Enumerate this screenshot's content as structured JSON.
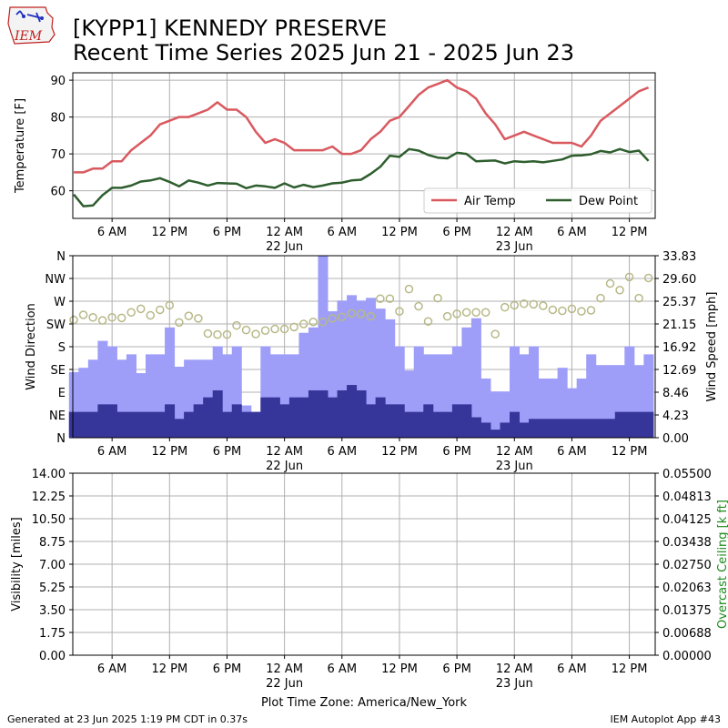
{
  "header": {
    "title_line1": "[KYPP1] KENNEDY PRESERVE",
    "title_line2": "Recent Time Series 2025 Jun 21 - 2025 Jun 23",
    "logo_text": "IEM"
  },
  "footer": {
    "generated": "Generated at 23 Jun 2025 1:19 PM CDT in 0.37s",
    "app": "IEM Autoplot App #43",
    "timezone_label": "Plot Time Zone: America/New_York"
  },
  "colors": {
    "air_temp": "#d9595f",
    "dew_point": "#2e5e2e",
    "gust_bar": "#9e9ef9",
    "sknt_bar": "#36369a",
    "wind_dir_marker": "#b8b888",
    "ceiling_axis": "#1a8a1a",
    "grid": "#b0b0b0"
  },
  "chart_data": [
    {
      "type": "line",
      "name": "temperature",
      "ylabel": "Temperature [F]",
      "ylim": [
        52.5,
        92
      ],
      "yticks": [
        60,
        70,
        80,
        90
      ],
      "x_unit": "hours since 2025-06-21 00:00 America/New_York",
      "xlim": [
        1.9,
        62.7
      ],
      "xticks": [
        6,
        12,
        18,
        24,
        30,
        36,
        42,
        48,
        54,
        60
      ],
      "xticklabels": [
        "6 AM",
        "12 PM",
        "6 PM",
        "12 AM",
        "6 AM",
        "12 PM",
        "6 PM",
        "12 AM",
        "6 AM",
        "12 PM"
      ],
      "date_labels": [
        {
          "x": 24,
          "label": "22 Jun"
        },
        {
          "x": 48,
          "label": "23 Jun"
        }
      ],
      "grid": true,
      "legend": "lower-right",
      "series": [
        {
          "name": "Air Temp",
          "x": [
            2,
            3,
            4,
            5,
            6,
            7,
            8,
            9,
            10,
            11,
            12,
            13,
            14,
            15,
            16,
            17,
            18,
            19,
            20,
            21,
            22,
            23,
            24,
            25,
            26,
            27,
            28,
            29,
            30,
            31,
            32,
            33,
            34,
            35,
            36,
            37,
            38,
            39,
            40,
            41,
            42,
            43,
            44,
            45,
            46,
            47,
            48,
            49,
            50,
            51,
            52,
            53,
            54,
            55,
            56,
            57,
            58,
            59,
            60,
            61,
            62
          ],
          "values": [
            65,
            65,
            66,
            66,
            68,
            68,
            71,
            73,
            75,
            78,
            79,
            80,
            80,
            81,
            82,
            84,
            82,
            82,
            80,
            76,
            73,
            74,
            73,
            71,
            71,
            71,
            71,
            72,
            70,
            70,
            71,
            74,
            76,
            79,
            80,
            83,
            86,
            88,
            89,
            90,
            88,
            87,
            85,
            81,
            78,
            74,
            75,
            76,
            75,
            74,
            73,
            73,
            73,
            72,
            75,
            79,
            81,
            83,
            85,
            87,
            88
          ]
        },
        {
          "name": "Dew Point",
          "x": [
            2,
            3,
            4,
            5,
            6,
            7,
            8,
            9,
            10,
            11,
            12,
            13,
            14,
            15,
            16,
            17,
            18,
            19,
            20,
            21,
            22,
            23,
            24,
            25,
            26,
            27,
            28,
            29,
            30,
            31,
            32,
            33,
            34,
            35,
            36,
            37,
            38,
            39,
            40,
            41,
            42,
            43,
            44,
            45,
            46,
            47,
            48,
            49,
            50,
            51,
            52,
            53,
            54,
            55,
            56,
            57,
            58,
            59,
            60,
            61,
            62
          ],
          "values": [
            59,
            55.8,
            56,
            58.8,
            60.8,
            60.8,
            61.4,
            62.5,
            62.8,
            63.4,
            62.4,
            61.2,
            62.8,
            62.2,
            61.4,
            62.1,
            62,
            61.9,
            60.7,
            61.4,
            61.2,
            60.8,
            62,
            60.9,
            61.6,
            61,
            61.4,
            62,
            62.2,
            62.8,
            63,
            64.6,
            66.5,
            69.5,
            69.2,
            71.3,
            70.9,
            69.7,
            69,
            68.8,
            70.3,
            70,
            68,
            68.1,
            68.2,
            67.4,
            68,
            67.8,
            68,
            67.7,
            68.1,
            68.5,
            69.5,
            69.6,
            69.9,
            70.8,
            70.4,
            71.3,
            70.5,
            70.9,
            68.1
          ]
        }
      ]
    },
    {
      "type": "bar",
      "name": "wind",
      "ylabel": "Wind Direction",
      "y2label": "Wind Speed [mph]",
      "yticklabels": [
        "N",
        "NE",
        "E",
        "SE",
        "S",
        "SW",
        "W",
        "NW",
        "N"
      ],
      "y2ticklabels": [
        "0.00",
        "4.23",
        "8.46",
        "12.69",
        "16.92",
        "21.15",
        "25.37",
        "29.60",
        "33.83"
      ],
      "ylim": [
        0,
        360
      ],
      "y2lim": [
        0,
        33.83
      ],
      "xlim": [
        1.9,
        62.7
      ],
      "grid": true,
      "series": [
        {
          "name": "Wind Gust",
          "x": [
            2,
            3,
            4,
            5,
            6,
            7,
            8,
            9,
            10,
            11,
            12,
            13,
            14,
            15,
            16,
            17,
            18,
            19,
            20,
            21,
            22,
            23,
            24,
            25,
            26,
            27,
            28,
            29,
            30,
            31,
            32,
            33,
            34,
            35,
            36,
            37,
            38,
            39,
            40,
            41,
            42,
            43,
            44,
            45,
            46,
            47,
            48,
            49,
            50,
            51,
            52,
            53,
            54,
            55,
            56,
            57,
            58,
            59,
            60,
            61,
            62
          ],
          "values": [
            12.2,
            13,
            14.5,
            18,
            17,
            14.5,
            15.5,
            12,
            15.5,
            15.5,
            20.5,
            13.2,
            14.5,
            14.5,
            14.5,
            17,
            15.5,
            17,
            6,
            4.8,
            17,
            15.5,
            15.5,
            15.5,
            19.5,
            20.5,
            33.8,
            23.5,
            25.5,
            26.5,
            25.5,
            26,
            24,
            22,
            17,
            12.5,
            17,
            15.5,
            15.5,
            15.5,
            17,
            20.5,
            22.2,
            11,
            8.6,
            8.6,
            17,
            15.5,
            17,
            11,
            11,
            13,
            9.2,
            11,
            15.5,
            13.5,
            13.5,
            13.5,
            17,
            13.5,
            15.5
          ]
        },
        {
          "name": "Wind Speed",
          "x": [
            2,
            3,
            4,
            5,
            6,
            7,
            8,
            9,
            10,
            11,
            12,
            13,
            14,
            15,
            16,
            17,
            18,
            19,
            20,
            21,
            22,
            23,
            24,
            25,
            26,
            27,
            28,
            29,
            30,
            31,
            32,
            33,
            34,
            35,
            36,
            37,
            38,
            39,
            40,
            41,
            42,
            43,
            44,
            45,
            46,
            47,
            48,
            49,
            50,
            51,
            52,
            53,
            54,
            55,
            56,
            57,
            58,
            59,
            60,
            61,
            62
          ],
          "values": [
            4.8,
            4.8,
            4.8,
            6.2,
            6.2,
            4.8,
            4.8,
            4.8,
            4.8,
            4.8,
            6.2,
            3.5,
            4.8,
            6.2,
            7.5,
            8.8,
            4.8,
            6.2,
            4.8,
            4.8,
            7.5,
            7.5,
            6.2,
            7.5,
            7.5,
            8.8,
            8.8,
            7.5,
            8.8,
            9.8,
            8.8,
            6.2,
            7.5,
            6.2,
            6.2,
            4.8,
            4.8,
            6.2,
            4.8,
            4.8,
            6.2,
            6.2,
            3.8,
            2.8,
            1.5,
            2.8,
            4.8,
            2.8,
            3.5,
            3.5,
            3.5,
            3.5,
            3.5,
            3.5,
            3.5,
            3.5,
            3.5,
            4.8,
            4.8,
            4.8,
            4.8
          ]
        },
        {
          "name": "Wind Direction",
          "type": "scatter",
          "x": [
            2,
            3,
            4,
            5,
            6,
            7,
            8,
            9,
            10,
            11,
            12,
            13,
            14,
            15,
            16,
            17,
            18,
            19,
            20,
            21,
            22,
            23,
            24,
            25,
            26,
            27,
            28,
            29,
            30,
            31,
            32,
            33,
            34,
            35,
            36,
            37,
            38,
            39,
            40,
            41,
            42,
            43,
            44,
            45,
            46,
            47,
            48,
            49,
            50,
            51,
            52,
            53,
            54,
            55,
            56,
            57,
            58,
            59,
            60,
            61,
            62
          ],
          "values": [
            233,
            243,
            238,
            232,
            238,
            237,
            248,
            255,
            242,
            253,
            262,
            228,
            241,
            236,
            206,
            204,
            204,
            222,
            213,
            205,
            212,
            215,
            215,
            219,
            225,
            229,
            229,
            236,
            239,
            246,
            245,
            240,
            275,
            275,
            250,
            294,
            260,
            230,
            276,
            240,
            245,
            248,
            248,
            248,
            205,
            258,
            262,
            265,
            264,
            261,
            253,
            251,
            255,
            250,
            252,
            276,
            305,
            292,
            318,
            276,
            316
          ]
        }
      ]
    },
    {
      "type": "line",
      "name": "visibility",
      "ylabel": "Visibility [miles]",
      "y2label": "Overcast Ceiling [k ft]",
      "yticklabels": [
        "0.00",
        "1.75",
        "3.50",
        "5.25",
        "7.00",
        "8.75",
        "10.50",
        "12.25",
        "14.00"
      ],
      "y2ticklabels": [
        "0.00000",
        "0.00688",
        "0.01375",
        "0.02063",
        "0.02750",
        "0.03438",
        "0.04125",
        "0.04813",
        "0.05500"
      ],
      "ylim": [
        0,
        14
      ],
      "y2lim": [
        0,
        0.055
      ],
      "xlim": [
        1.9,
        62.7
      ],
      "grid": true,
      "series": []
    }
  ]
}
